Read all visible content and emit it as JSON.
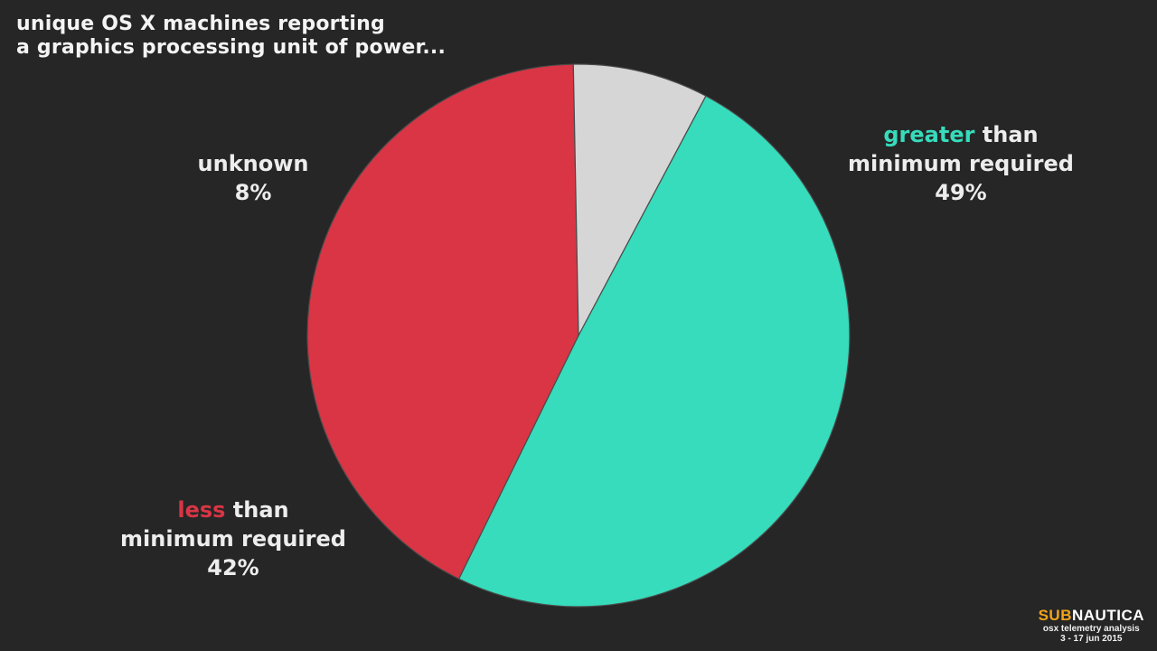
{
  "title": {
    "line1": "unique OS X machines reporting",
    "line2": "a graphics processing unit of power..."
  },
  "chart_data": {
    "type": "pie",
    "slices": [
      {
        "key": "greater",
        "value": 49,
        "percent_label": "49%",
        "emph": "greater",
        "rest_line1": " than",
        "line2": "minimum required",
        "color": "#36dcbb"
      },
      {
        "key": "less",
        "value": 42,
        "percent_label": "42%",
        "emph": "less",
        "rest_line1": " than",
        "line2": "minimum required",
        "color": "#d93545"
      },
      {
        "key": "unknown",
        "value": 8,
        "percent_label": "8%",
        "line1": "unknown",
        "color": "#d6d6d6"
      }
    ]
  },
  "logo": {
    "sub": "SUB",
    "nautica": "NAUTICA",
    "line1": "osx telemetry analysis",
    "line2": "3 - 17 jun 2015",
    "sub_color": "#f2a31b",
    "nautica_color": "#ffffff"
  }
}
